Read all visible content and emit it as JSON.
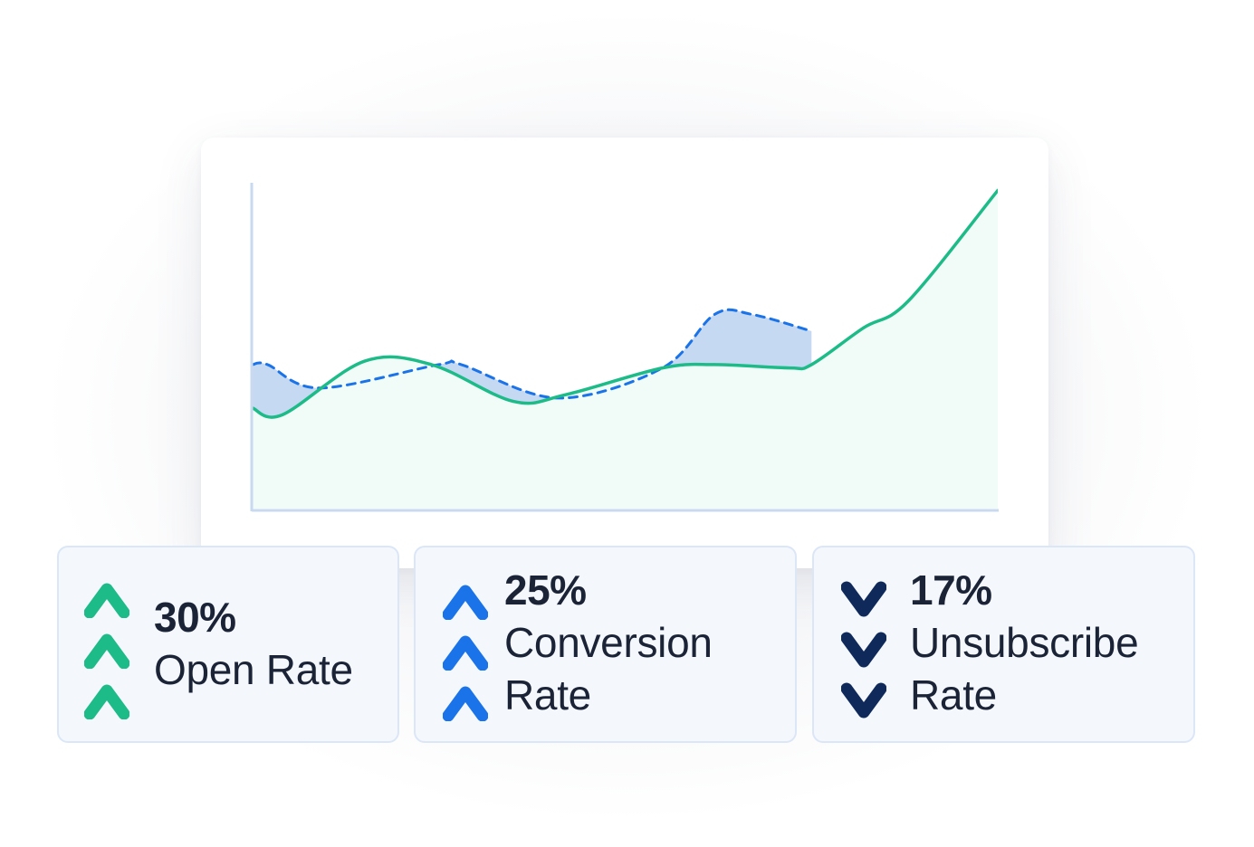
{
  "colors": {
    "green": "#1dbb88",
    "blue": "#1a73e8",
    "navy": "#0f2a5a",
    "green_fill": "#f1fbf7",
    "blue_fill": "#c6d9f3"
  },
  "chart_data": {
    "type": "area",
    "title": "",
    "xlabel": "",
    "ylabel": "",
    "xlim": [
      0,
      100
    ],
    "ylim": [
      0,
      100
    ],
    "grid": false,
    "legend": "none",
    "series": [
      {
        "style": "solid",
        "color": "#1dbb88",
        "x": [
          0,
          4,
          15,
          24,
          35,
          42,
          55,
          62,
          72,
          75,
          82,
          88,
          100
        ],
        "y": [
          30,
          28,
          44,
          43,
          32,
          34,
          42,
          43,
          42,
          43,
          54,
          62,
          95
        ]
      },
      {
        "style": "dashed",
        "color": "#1a73e8",
        "x": [
          0,
          2,
          9,
          25,
          28,
          41,
          55,
          62,
          67,
          75
        ],
        "y": [
          43,
          43,
          36,
          43,
          43,
          33,
          42,
          58,
          58,
          53
        ]
      }
    ]
  },
  "stats": [
    {
      "value": "30%",
      "label_lines": [
        "Open Rate"
      ],
      "direction": "up",
      "icon": "chevron-up-icon",
      "color": "#1dbb88"
    },
    {
      "value": "25%",
      "label_lines": [
        "Conversion",
        "Rate"
      ],
      "direction": "up",
      "icon": "chevron-up-icon",
      "color": "#1a73e8"
    },
    {
      "value": "17%",
      "label_lines": [
        "Unsubscribe",
        "Rate"
      ],
      "direction": "down",
      "icon": "chevron-down-icon",
      "color": "#0f2a5a"
    }
  ]
}
